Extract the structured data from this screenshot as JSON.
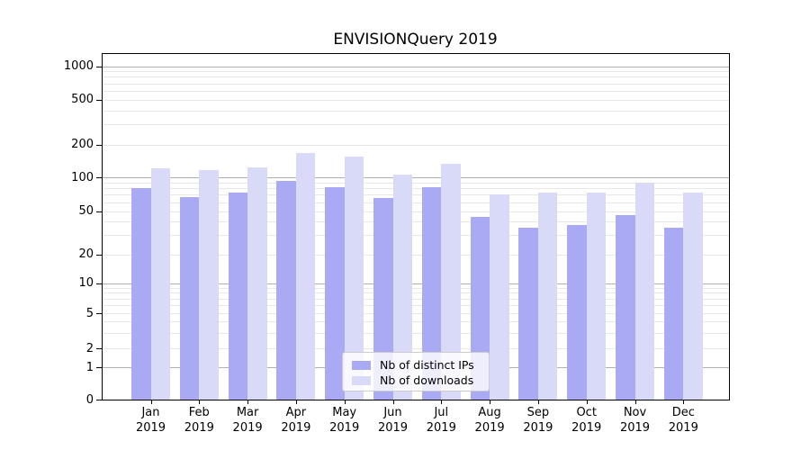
{
  "chart_data": {
    "type": "bar",
    "title": "ENVISIONQuery 2019",
    "categories": [
      "Jan",
      "Feb",
      "Mar",
      "Apr",
      "May",
      "Jun",
      "Jul",
      "Aug",
      "Sep",
      "Oct",
      "Nov",
      "Dec"
    ],
    "x_year_line": "2019",
    "series": [
      {
        "name": "Nb of distinct IPs",
        "color": "#a9a9f4",
        "values": [
          80,
          67,
          73,
          93,
          82,
          65,
          82,
          44,
          35,
          37,
          46,
          35
        ]
      },
      {
        "name": "Nb of downloads",
        "color": "#d9d9f8",
        "values": [
          121,
          116,
          123,
          167,
          155,
          106,
          133,
          70,
          73,
          73,
          90,
          73
        ]
      }
    ],
    "xlabel": "",
    "ylabel": "",
    "yscale": "symlog",
    "ylim": [
      0,
      1200
    ],
    "y_tick_labels": [
      "0",
      "1",
      "2",
      "5",
      "10",
      "20",
      "50",
      "100",
      "200",
      "500",
      "1000"
    ],
    "y_tick_values": [
      0,
      1,
      2,
      5,
      10,
      20,
      50,
      100,
      200,
      500,
      1000
    ],
    "major_grid_values": [
      1,
      10,
      100,
      1000
    ],
    "minor_grid_values": [
      2,
      3,
      4,
      5,
      6,
      7,
      8,
      9,
      20,
      30,
      40,
      50,
      60,
      70,
      80,
      90,
      200,
      300,
      400,
      500,
      600,
      700,
      800,
      900
    ],
    "grid": true,
    "legend_position": "lower center",
    "colors": {
      "major_grid": "#b0b0b0",
      "minor_grid": "#e8e8e8",
      "spine": "#000000",
      "background": "#ffffff"
    }
  }
}
